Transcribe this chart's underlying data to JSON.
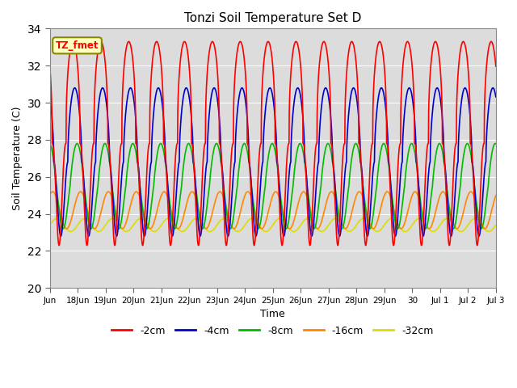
{
  "title": "Tonzi Soil Temperature Set D",
  "xlabel": "Time",
  "ylabel": "Soil Temperature (C)",
  "ylim": [
    20,
    34
  ],
  "yticks": [
    20,
    22,
    24,
    26,
    28,
    30,
    32,
    34
  ],
  "legend_label": "TZ_fmet",
  "legend_entries": [
    "-2cm",
    "-4cm",
    "-8cm",
    "-16cm",
    "-32cm"
  ],
  "line_colors": [
    "#FF0000",
    "#0000CC",
    "#00BB00",
    "#FF8800",
    "#DDDD00"
  ],
  "n_days": 16.0,
  "dt_hours": 0.1,
  "depths": {
    "-2cm": {
      "mean": 27.8,
      "amp": 5.5,
      "phase_hrs": 0.0,
      "amp2": 1.5,
      "sharpness": 2.5
    },
    "-4cm": {
      "mean": 26.8,
      "amp": 4.0,
      "phase_hrs": 1.5,
      "amp2": 0.8,
      "sharpness": 1.8
    },
    "-8cm": {
      "mean": 25.5,
      "amp": 2.3,
      "phase_hrs": 3.5,
      "amp2": 0.4,
      "sharpness": 1.2
    },
    "-16cm": {
      "mean": 24.2,
      "amp": 1.0,
      "phase_hrs": 6.5,
      "amp2": 0.2,
      "sharpness": 1.0
    },
    "-32cm": {
      "mean": 23.4,
      "amp": 0.35,
      "phase_hrs": 10.0,
      "amp2": 0.0,
      "sharpness": 1.0
    }
  },
  "x_tick_positions": [
    0,
    1,
    2,
    3,
    4,
    5,
    6,
    7,
    8,
    9,
    10,
    11,
    12,
    13,
    14,
    15,
    16
  ],
  "x_tick_labels": [
    "Jun",
    "18Jun",
    "19Jun",
    "20Jun",
    "21Jun",
    "22Jun",
    "23Jun",
    "24Jun",
    "25Jun",
    "26Jun",
    "27Jun",
    "28Jun",
    "29Jun",
    "30",
    "Jul 1",
    "Jul 2",
    "Jul 3"
  ],
  "plot_bg_color": "#DCDCDC",
  "fig_bg_color": "#FFFFFF",
  "grid_color": "#FFFFFF"
}
